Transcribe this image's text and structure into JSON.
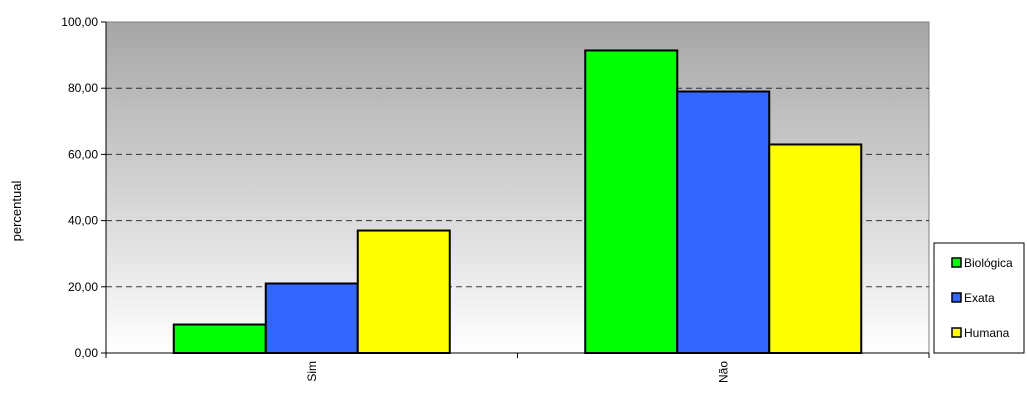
{
  "chart_data": {
    "type": "bar",
    "title": "",
    "xlabel": "",
    "ylabel": "percentual",
    "categories": [
      "Sim",
      "Não"
    ],
    "ylim": [
      0,
      100
    ],
    "yticks": [
      0,
      20,
      40,
      60,
      80,
      100
    ],
    "ytick_labels": [
      "0,00",
      "20,00",
      "40,00",
      "60,00",
      "80,00",
      "100,00"
    ],
    "grid": true,
    "grid_style": "dashed",
    "legend_position": "right",
    "series": [
      {
        "name": "Biológica",
        "color": "#00FF00",
        "values": [
          8.6,
          91.4
        ]
      },
      {
        "name": "Exata",
        "color": "#3366FF",
        "values": [
          21.0,
          79.0
        ]
      },
      {
        "name": "Humana",
        "color": "#FFFF00",
        "values": [
          37.0,
          63.0
        ]
      }
    ]
  }
}
